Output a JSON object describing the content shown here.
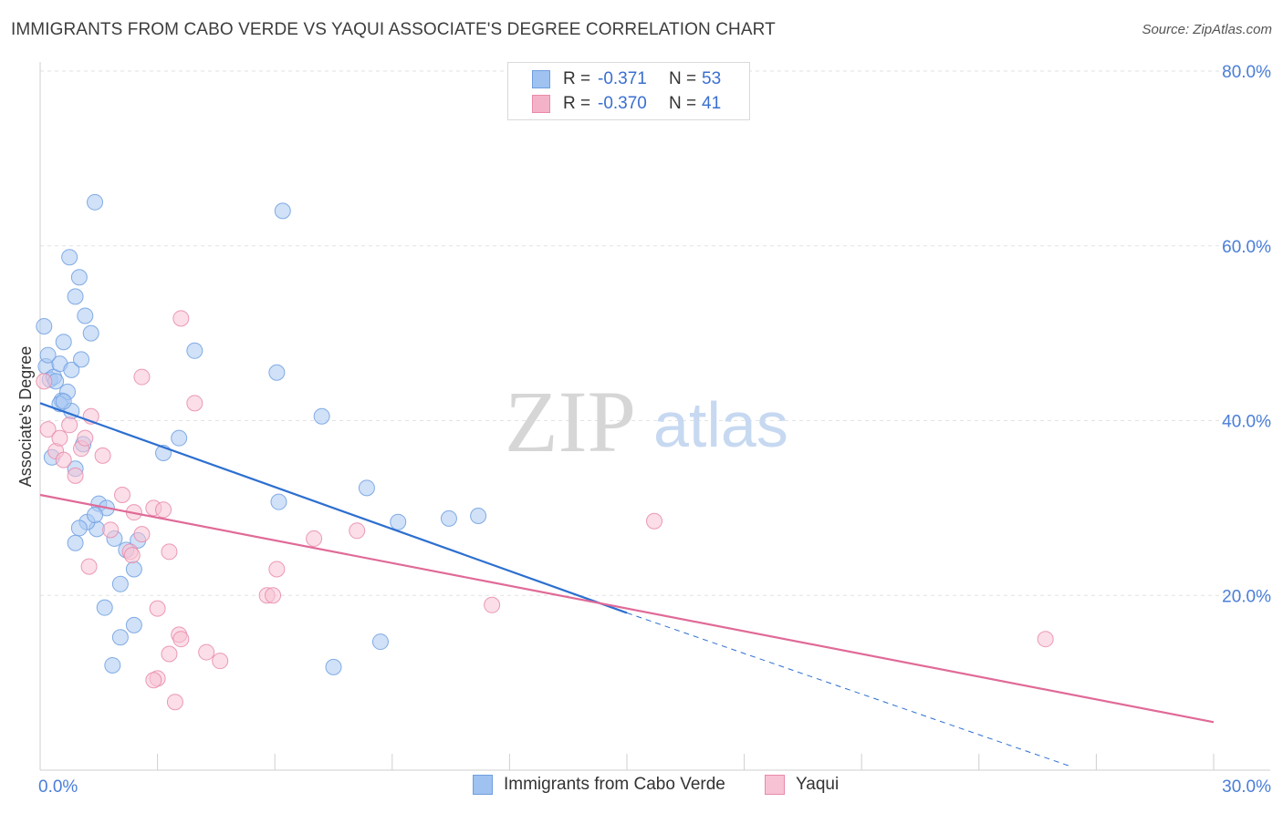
{
  "header": {
    "title": "IMMIGRANTS FROM CABO VERDE VS YAQUI ASSOCIATE'S DEGREE CORRELATION CHART",
    "source": "Source: ZipAtlas.com"
  },
  "legend": {
    "rows": [
      {
        "r_label": "R =",
        "r_value": "-0.371",
        "n_label": "N =",
        "n_value": "53",
        "color": "#9fc2f0"
      },
      {
        "r_label": "R =",
        "r_value": "-0.370",
        "n_label": "N =",
        "n_value": "41",
        "color": "#f4b2c8"
      }
    ]
  },
  "bottom_legend": {
    "items": [
      {
        "label": "Immigrants from Cabo Verde",
        "color": "#9fc2f0",
        "border": "#6f9fe0"
      },
      {
        "label": "Yaqui",
        "color": "#f7c2d3",
        "border": "#e98aa9"
      }
    ]
  },
  "watermark": {
    "zip": "ZIP",
    "atlas": "atlas"
  },
  "chart_data": {
    "type": "scatter",
    "title": "IMMIGRANTS FROM CABO VERDE VS YAQUI ASSOCIATE'S DEGREE CORRELATION CHART",
    "xlabel": "",
    "ylabel": "Associate's Degree",
    "xlim": [
      0,
      30
    ],
    "ylim": [
      0,
      80
    ],
    "x_tick_labels": [
      "0.0%",
      "30.0%"
    ],
    "y_ticks": [
      20,
      40,
      60,
      80
    ],
    "y_tick_labels": [
      "20.0%",
      "40.0%",
      "60.0%",
      "80.0%"
    ],
    "grid": true,
    "series": [
      {
        "name": "Immigrants from Cabo Verde",
        "color": "#6f9fe0",
        "fill": "#a9c8f2",
        "trend_color": "#2d6fd0",
        "trend": {
          "x": [
            0,
            15
          ],
          "y": [
            42,
            18
          ],
          "dashed_to": [
            26.3,
            0.5
          ]
        },
        "points": [
          [
            0.1,
            50.8
          ],
          [
            0.15,
            46.2
          ],
          [
            0.2,
            47.5
          ],
          [
            0.25,
            44.7
          ],
          [
            0.35,
            45.0
          ],
          [
            0.4,
            44.5
          ],
          [
            0.5,
            46.5
          ],
          [
            0.55,
            42.3
          ],
          [
            0.6,
            49.0
          ],
          [
            0.7,
            43.3
          ],
          [
            0.75,
            58.7
          ],
          [
            0.8,
            45.8
          ],
          [
            0.9,
            54.2
          ],
          [
            1.0,
            56.4
          ],
          [
            1.05,
            47.0
          ],
          [
            1.15,
            52.0
          ],
          [
            1.3,
            50.0
          ],
          [
            1.4,
            65.0
          ],
          [
            0.3,
            35.8
          ],
          [
            0.5,
            41.9
          ],
          [
            0.8,
            41.1
          ],
          [
            1.1,
            37.3
          ],
          [
            0.9,
            34.5
          ],
          [
            1.5,
            30.5
          ],
          [
            1.7,
            30.0
          ],
          [
            1.45,
            27.6
          ],
          [
            1.2,
            28.4
          ],
          [
            1.9,
            26.5
          ],
          [
            2.05,
            21.3
          ],
          [
            2.2,
            25.2
          ],
          [
            2.4,
            23.0
          ],
          [
            2.5,
            26.3
          ],
          [
            1.4,
            29.2
          ],
          [
            1.0,
            27.7
          ],
          [
            0.9,
            26.0
          ],
          [
            0.6,
            42.2
          ],
          [
            2.05,
            15.2
          ],
          [
            2.4,
            16.6
          ],
          [
            1.65,
            18.6
          ],
          [
            1.85,
            12.0
          ],
          [
            3.15,
            36.3
          ],
          [
            3.55,
            38.0
          ],
          [
            3.95,
            48.0
          ],
          [
            6.2,
            64.0
          ],
          [
            6.05,
            45.5
          ],
          [
            7.2,
            40.5
          ],
          [
            6.1,
            30.7
          ],
          [
            8.35,
            32.3
          ],
          [
            9.15,
            28.4
          ],
          [
            10.45,
            28.8
          ],
          [
            11.2,
            29.1
          ],
          [
            7.5,
            11.8
          ],
          [
            8.7,
            14.7
          ]
        ]
      },
      {
        "name": "Yaqui",
        "color": "#e98aa9",
        "fill": "#f7c2d3",
        "trend_color": "#e06a97",
        "trend": {
          "x": [
            0,
            30
          ],
          "y": [
            31.5,
            5.5
          ]
        },
        "points": [
          [
            0.1,
            44.5
          ],
          [
            0.2,
            39.0
          ],
          [
            0.4,
            36.5
          ],
          [
            0.5,
            38.0
          ],
          [
            0.6,
            35.5
          ],
          [
            0.75,
            39.5
          ],
          [
            0.9,
            33.7
          ],
          [
            1.05,
            36.8
          ],
          [
            1.15,
            38.0
          ],
          [
            1.3,
            40.5
          ],
          [
            1.6,
            36.0
          ],
          [
            1.8,
            27.5
          ],
          [
            2.1,
            31.5
          ],
          [
            2.4,
            29.5
          ],
          [
            2.6,
            45.0
          ],
          [
            2.9,
            30.0
          ],
          [
            2.3,
            25.0
          ],
          [
            2.6,
            27.0
          ],
          [
            3.15,
            29.8
          ],
          [
            3.3,
            25.0
          ],
          [
            3.6,
            51.7
          ],
          [
            3.95,
            42.0
          ],
          [
            3.0,
            18.5
          ],
          [
            3.3,
            13.3
          ],
          [
            3.45,
            7.8
          ],
          [
            3.55,
            15.5
          ],
          [
            3.0,
            10.5
          ],
          [
            4.25,
            13.5
          ],
          [
            4.6,
            12.5
          ],
          [
            5.8,
            20.0
          ],
          [
            6.05,
            23.0
          ],
          [
            5.95,
            20.0
          ],
          [
            7.0,
            26.5
          ],
          [
            8.1,
            27.4
          ],
          [
            1.25,
            23.3
          ],
          [
            2.9,
            10.3
          ],
          [
            11.55,
            18.9
          ],
          [
            15.7,
            28.5
          ],
          [
            25.7,
            15.0
          ],
          [
            2.35,
            24.6
          ],
          [
            3.6,
            15.0
          ]
        ]
      }
    ]
  }
}
